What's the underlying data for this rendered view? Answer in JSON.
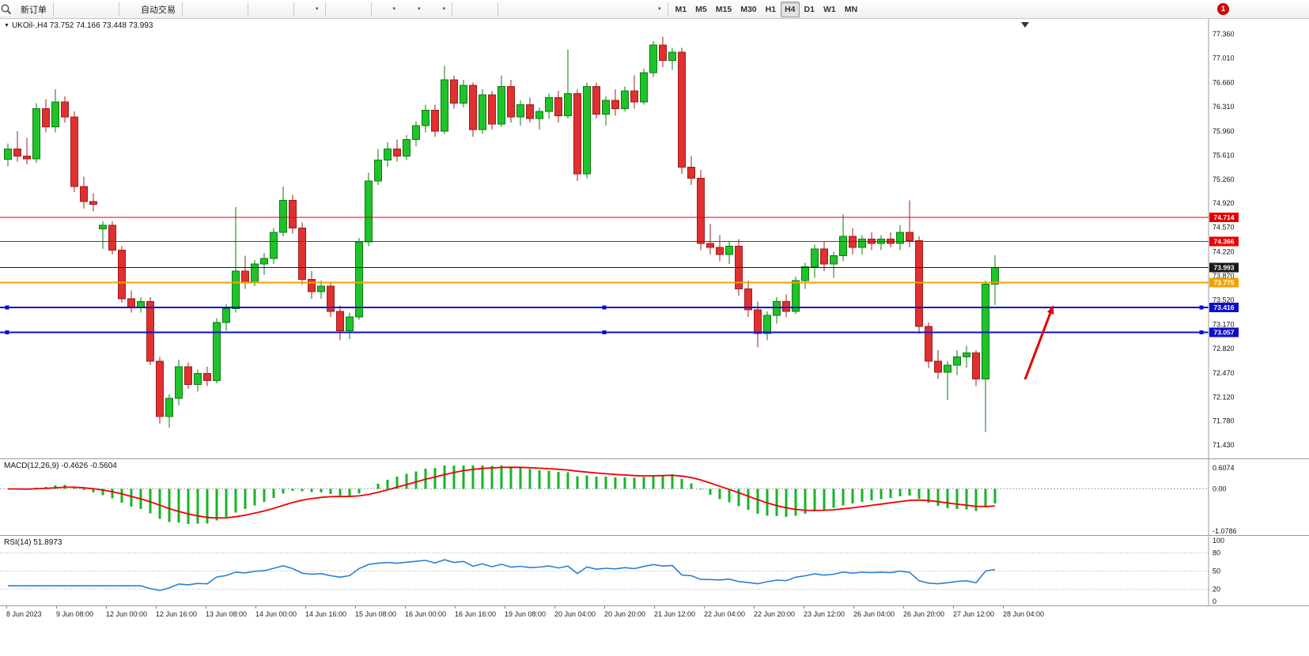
{
  "toolbar": {
    "groups": [
      {
        "buttons": [
          {
            "name": "new-order-button",
            "icon": "new-order-icon",
            "label": "新订单"
          }
        ]
      },
      {
        "buttons": [
          {
            "name": "new-chart-button",
            "icon": "gold-bars-icon"
          },
          {
            "name": "profiles-button",
            "icon": "profiles-icon"
          },
          {
            "name": "refresh-button",
            "icon": "refresh-icon"
          }
        ]
      },
      {
        "buttons": [
          {
            "name": "auto-trading-button",
            "icon": "play-icon",
            "label": "自动交易"
          }
        ]
      },
      {
        "buttons": [
          {
            "name": "bar-chart-button",
            "icon": "bars-icon"
          },
          {
            "name": "candlestick-chart-button",
            "icon": "candles-icon"
          },
          {
            "name": "line-chart-button",
            "icon": "line-chart-icon"
          }
        ]
      },
      {
        "buttons": [
          {
            "name": "zoom-in-button",
            "icon": "zoom-in-icon"
          },
          {
            "name": "zoom-out-button",
            "icon": "zoom-out-icon"
          }
        ]
      },
      {
        "buttons": [
          {
            "name": "tile-windows-button",
            "icon": "tile-windows-icon",
            "caret": true
          }
        ]
      },
      {
        "buttons": [
          {
            "name": "auto-scroll-button",
            "icon": "auto-scroll-icon"
          },
          {
            "name": "chart-shift-button",
            "icon": "chart-shift-icon"
          }
        ]
      },
      {
        "buttons": [
          {
            "name": "indicators-button",
            "icon": "indicators-plus-icon",
            "caret": true
          },
          {
            "name": "periods-button",
            "icon": "clock-icon",
            "caret": true
          },
          {
            "name": "templates-button",
            "icon": "template-icon",
            "caret": true
          }
        ]
      },
      {
        "buttons": [
          {
            "name": "cursor-button",
            "icon": "cursor-icon"
          },
          {
            "name": "crosshair-button",
            "icon": "crosshair-icon"
          }
        ]
      },
      {
        "buttons": [
          {
            "name": "vertical-line-button",
            "icon": "vertical-line-icon"
          },
          {
            "name": "horizontal-line-button",
            "icon": "horizontal-line-icon"
          },
          {
            "name": "trendline-button",
            "icon": "trendline-icon"
          },
          {
            "name": "channel-button",
            "icon": "channel-icon"
          },
          {
            "name": "fibonacci-button",
            "icon": "fibonacci-icon"
          },
          {
            "name": "text-button",
            "icon": "text-icon"
          },
          {
            "name": "label-button",
            "icon": "label-icon"
          },
          {
            "name": "shapes-button",
            "icon": "arrow-shape-icon",
            "caret": true
          }
        ]
      }
    ],
    "timeframes": [
      "M1",
      "M5",
      "M15",
      "M30",
      "H1",
      "H4",
      "D1",
      "W1",
      "MN"
    ],
    "active_timeframe": "H4",
    "notification_badge": "1"
  },
  "chart": {
    "symbol_label": "UKOil-,H4",
    "ohlc_text": "73.752 74.166 73.448 73.993"
  },
  "chart_data": {
    "type": "candlestick",
    "symbol": "UKOil-",
    "timeframe": "H4",
    "colors": {
      "up": "#1fc329",
      "up_stroke": "#0c7a12",
      "down": "#e03030",
      "down_stroke": "#9e1c1c",
      "macd_hist": "#16b426",
      "macd_signal": "#f00000",
      "rsi_line": "#2b7fd4",
      "arrow": "#e00000"
    },
    "price_axis_labels": [
      "77.360",
      "77.010",
      "76.660",
      "76.310",
      "75.960",
      "75.610",
      "75.260",
      "74.920",
      "74.570",
      "74.220",
      "73.870",
      "73.520",
      "73.170",
      "72.820",
      "72.470",
      "72.120",
      "71.780",
      "71.430"
    ],
    "date_labels": [
      "8 Jun 2023",
      "9 Jun 08:00",
      "12 Jun 00:00",
      "12 Jun 16:00",
      "13 Jun 08:00",
      "14 Jun 00:00",
      "14 Jun 16:00",
      "15 Jun 08:00",
      "16 Jun 00:00",
      "16 Jun 16:00",
      "19 Jun 08:00",
      "20 Jun 04:00",
      "20 Jun 20:00",
      "21 Jun 12:00",
      "22 Jun 04:00",
      "22 Jun 20:00",
      "23 Jun 12:00",
      "26 Jun 04:00",
      "26 Jun 20:00",
      "27 Jun 12:00",
      "28 Jun 04:00"
    ],
    "candles": [
      [
        75.55,
        75.78,
        75.45,
        75.7
      ],
      [
        75.7,
        75.96,
        75.52,
        75.6
      ],
      [
        75.6,
        75.86,
        75.48,
        75.56
      ],
      [
        75.56,
        76.36,
        75.5,
        76.28
      ],
      [
        76.28,
        76.42,
        75.94,
        76.02
      ],
      [
        76.02,
        76.56,
        75.94,
        76.38
      ],
      [
        76.38,
        76.46,
        76.08,
        76.16
      ],
      [
        76.16,
        76.24,
        75.08,
        75.16
      ],
      [
        75.16,
        75.3,
        74.84,
        74.94
      ],
      [
        74.94,
        75.06,
        74.8,
        74.9
      ],
      [
        74.55,
        74.66,
        74.26,
        74.6
      ],
      [
        74.6,
        74.66,
        74.18,
        74.24
      ],
      [
        74.24,
        74.3,
        73.48,
        73.54
      ],
      [
        73.54,
        73.66,
        73.34,
        73.42
      ],
      [
        73.42,
        73.56,
        73.34,
        73.5
      ],
      [
        73.5,
        73.56,
        72.58,
        72.64
      ],
      [
        72.64,
        72.7,
        71.74,
        71.84
      ],
      [
        71.84,
        72.16,
        71.68,
        72.1
      ],
      [
        72.1,
        72.66,
        72.0,
        72.56
      ],
      [
        72.56,
        72.62,
        72.24,
        72.3
      ],
      [
        72.3,
        72.52,
        72.2,
        72.46
      ],
      [
        72.46,
        72.56,
        72.28,
        72.36
      ],
      [
        72.36,
        73.26,
        72.32,
        73.2
      ],
      [
        73.2,
        73.46,
        73.08,
        73.4
      ],
      [
        73.4,
        74.86,
        73.34,
        73.94
      ],
      [
        73.94,
        74.16,
        73.68,
        73.78
      ],
      [
        73.78,
        74.1,
        73.72,
        74.04
      ],
      [
        74.04,
        74.2,
        73.88,
        74.12
      ],
      [
        74.12,
        74.56,
        74.04,
        74.5
      ],
      [
        74.5,
        75.16,
        74.44,
        74.96
      ],
      [
        74.96,
        75.04,
        74.48,
        74.56
      ],
      [
        74.56,
        74.64,
        73.74,
        73.82
      ],
      [
        73.82,
        73.94,
        73.54,
        73.64
      ],
      [
        73.64,
        73.8,
        73.54,
        73.72
      ],
      [
        73.72,
        73.78,
        73.28,
        73.36
      ],
      [
        73.36,
        73.44,
        72.94,
        73.08
      ],
      [
        73.08,
        73.34,
        72.96,
        73.28
      ],
      [
        73.28,
        74.42,
        73.24,
        74.36
      ],
      [
        74.36,
        75.36,
        74.3,
        75.24
      ],
      [
        75.24,
        75.7,
        75.18,
        75.54
      ],
      [
        75.54,
        75.8,
        75.44,
        75.7
      ],
      [
        75.7,
        75.84,
        75.52,
        75.6
      ],
      [
        75.6,
        75.9,
        75.54,
        75.84
      ],
      [
        75.84,
        76.1,
        75.74,
        76.04
      ],
      [
        76.04,
        76.34,
        75.94,
        76.26
      ],
      [
        76.26,
        76.34,
        75.88,
        75.96
      ],
      [
        75.96,
        76.9,
        75.92,
        76.7
      ],
      [
        76.7,
        76.76,
        76.28,
        76.36
      ],
      [
        76.36,
        76.7,
        76.3,
        76.62
      ],
      [
        76.62,
        76.66,
        75.88,
        75.98
      ],
      [
        75.98,
        76.56,
        75.92,
        76.48
      ],
      [
        76.48,
        76.54,
        75.98,
        76.06
      ],
      [
        76.06,
        76.76,
        76.02,
        76.6
      ],
      [
        76.6,
        76.7,
        76.08,
        76.16
      ],
      [
        76.16,
        76.4,
        76.04,
        76.34
      ],
      [
        76.34,
        76.44,
        76.08,
        76.14
      ],
      [
        76.14,
        76.3,
        75.98,
        76.24
      ],
      [
        76.24,
        76.5,
        76.14,
        76.44
      ],
      [
        76.44,
        76.54,
        76.08,
        76.18
      ],
      [
        76.18,
        77.14,
        76.14,
        76.5
      ],
      [
        76.5,
        76.56,
        75.24,
        75.34
      ],
      [
        75.34,
        76.66,
        75.28,
        76.6
      ],
      [
        76.6,
        76.66,
        76.14,
        76.2
      ],
      [
        76.2,
        76.46,
        76.04,
        76.4
      ],
      [
        76.4,
        76.56,
        76.18,
        76.28
      ],
      [
        76.28,
        76.6,
        76.24,
        76.54
      ],
      [
        76.54,
        76.76,
        76.28,
        76.38
      ],
      [
        76.38,
        76.86,
        76.34,
        76.8
      ],
      [
        76.8,
        77.26,
        76.74,
        77.2
      ],
      [
        77.2,
        77.32,
        76.88,
        76.98
      ],
      [
        76.98,
        77.16,
        76.84,
        77.1
      ],
      [
        77.1,
        77.16,
        75.34,
        75.44
      ],
      [
        75.44,
        75.6,
        75.18,
        75.28
      ],
      [
        75.28,
        75.4,
        74.24,
        74.34
      ],
      [
        74.34,
        74.62,
        74.18,
        74.28
      ],
      [
        74.28,
        74.46,
        74.08,
        74.18
      ],
      [
        74.18,
        74.36,
        74.04,
        74.3
      ],
      [
        74.3,
        74.4,
        73.58,
        73.68
      ],
      [
        73.68,
        73.8,
        73.28,
        73.38
      ],
      [
        73.38,
        73.5,
        72.84,
        73.04
      ],
      [
        73.04,
        73.36,
        72.94,
        73.3
      ],
      [
        73.3,
        73.56,
        73.18,
        73.5
      ],
      [
        73.5,
        73.6,
        73.28,
        73.36
      ],
      [
        73.36,
        73.86,
        73.32,
        73.8
      ],
      [
        73.8,
        74.06,
        73.68,
        74.0
      ],
      [
        74.0,
        74.32,
        73.84,
        74.26
      ],
      [
        74.26,
        74.36,
        73.94,
        74.04
      ],
      [
        74.04,
        74.22,
        73.84,
        74.16
      ],
      [
        74.16,
        74.76,
        74.08,
        74.44
      ],
      [
        74.44,
        74.56,
        74.18,
        74.28
      ],
      [
        74.28,
        74.46,
        74.18,
        74.4
      ],
      [
        74.4,
        74.5,
        74.24,
        74.34
      ],
      [
        74.34,
        74.46,
        74.24,
        74.4
      ],
      [
        74.4,
        74.5,
        74.28,
        74.34
      ],
      [
        74.34,
        74.6,
        74.24,
        74.5
      ],
      [
        74.5,
        74.96,
        74.28,
        74.38
      ],
      [
        74.38,
        74.44,
        73.04,
        73.14
      ],
      [
        73.14,
        73.2,
        72.54,
        72.64
      ],
      [
        72.64,
        72.8,
        72.38,
        72.48
      ],
      [
        72.48,
        72.64,
        72.08,
        72.58
      ],
      [
        72.58,
        72.8,
        72.44,
        72.7
      ],
      [
        72.7,
        72.86,
        72.54,
        72.76
      ],
      [
        72.76,
        72.8,
        72.28,
        72.38
      ],
      [
        72.38,
        73.8,
        71.62,
        73.75
      ],
      [
        73.752,
        74.166,
        73.448,
        73.993
      ]
    ],
    "hlines": [
      {
        "price": 74.714,
        "label": "74.714",
        "color": "#e80000",
        "width": 1,
        "handles": false
      },
      {
        "price": 74.366,
        "label": "74.366",
        "color": "#e80000",
        "width": 1,
        "handles": false
      },
      {
        "price": 73.993,
        "label": "73.993",
        "color": "#1a1a1a",
        "width": 1,
        "handles": false
      },
      {
        "price": 73.775,
        "label": "73.775",
        "color": "#f2a100",
        "width": 2,
        "handles": false
      },
      {
        "price": 73.416,
        "label": "73.416",
        "color": "#0d0dd0",
        "width": 2,
        "handles": true
      },
      {
        "price": 73.057,
        "label": "73.057",
        "color": "#0d0dd0",
        "width": 2,
        "handles": true
      }
    ],
    "macd": {
      "label": "MACD(12,26,9)",
      "values_text": "-0.4626 -0.5604",
      "params": {
        "fast": 12,
        "slow": 26,
        "signal": 9
      },
      "axis_labels": [
        "0.6074",
        "0.00",
        "-1.0786"
      ],
      "axis_max": 0.6074,
      "axis_min": -1.0786
    },
    "rsi": {
      "label": "RSI(14)",
      "value_text": "51.8973",
      "period": 14,
      "axis_labels": [
        "100",
        "80",
        "50",
        "20",
        "0"
      ],
      "levels": [
        80,
        50,
        20
      ]
    }
  }
}
